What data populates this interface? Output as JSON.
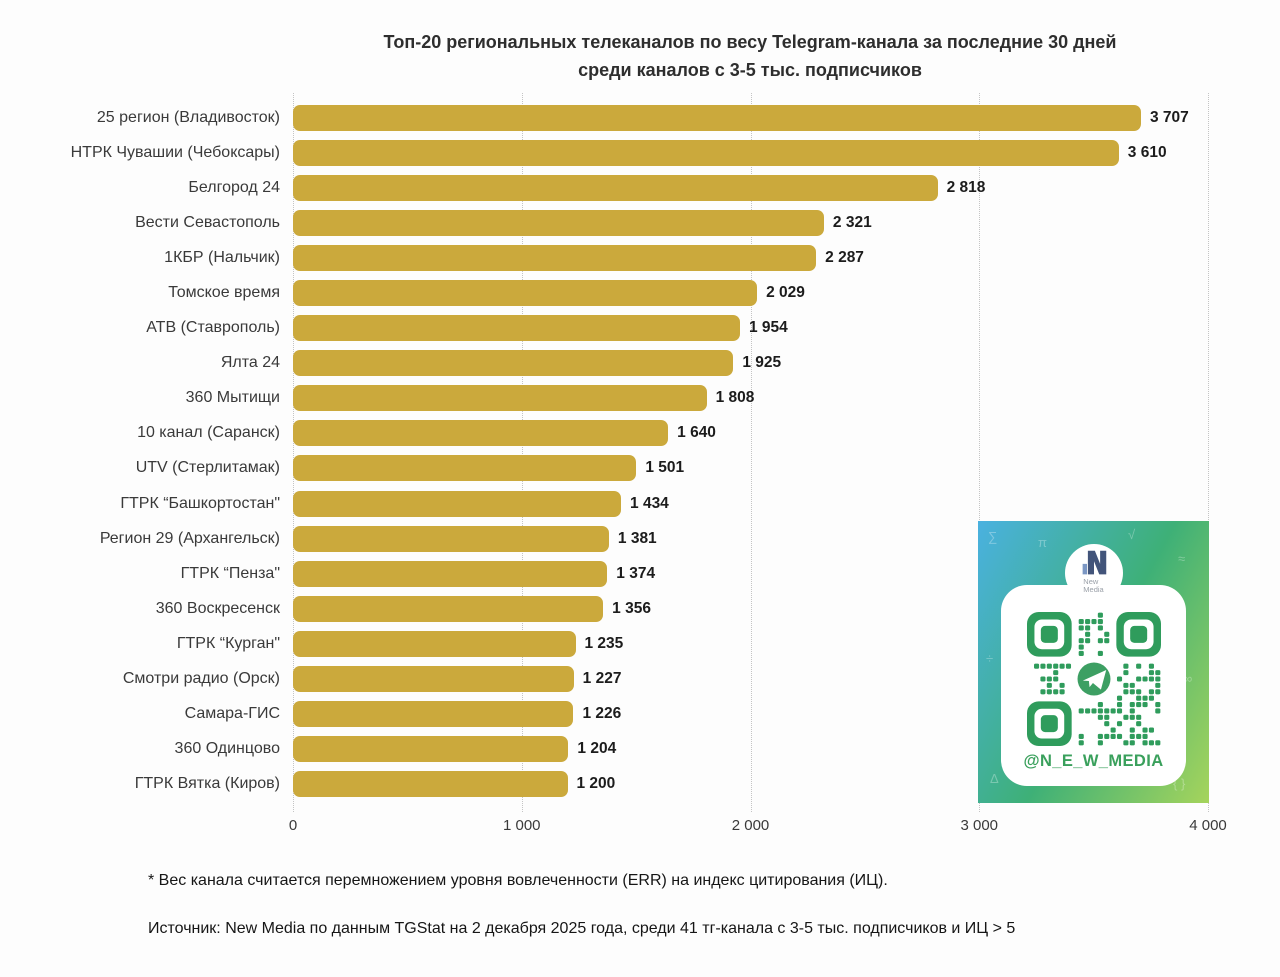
{
  "title": {
    "line1": "Топ-20 региональных телеканалов по весу Telegram-канала за последние 30 дней",
    "line2": "среди каналов с 3-5 тыс. подписчиков"
  },
  "chart_data": {
    "type": "bar",
    "orientation": "horizontal",
    "title": "Топ-20 региональных телеканалов по весу Telegram-канала за последние 30 дней среди каналов с 3-5 тыс. подписчиков",
    "categories": [
      "25 регион (Владивосток)",
      "НТРК Чувашии (Чебоксары)",
      "Белгород 24",
      "Вести Севастополь",
      "1КБР (Нальчик)",
      "Томское время",
      "АТВ (Ставрополь)",
      "Ялта 24",
      "360 Мытищи",
      "10 канал (Саранск)",
      "UTV (Стерлитамак)",
      "ГТРК “Башкортостан\"",
      "Регион 29 (Архангельск)",
      "ГТРК “Пенза\"",
      "360 Воскресенск",
      "ГТРК “Курган\"",
      "Смотри радио (Орск)",
      "Самара-ГИС",
      "360 Одинцово",
      "ГТРК Вятка (Киров)"
    ],
    "values": [
      3707,
      3610,
      2818,
      2321,
      2287,
      2029,
      1954,
      1925,
      1808,
      1640,
      1501,
      1434,
      1381,
      1374,
      1356,
      1235,
      1227,
      1226,
      1204,
      1200
    ],
    "value_labels": [
      "3 707",
      "3 610",
      "2 818",
      "2 321",
      "2 287",
      "2 029",
      "1 954",
      "1 925",
      "1 808",
      "1 640",
      "1 501",
      "1 434",
      "1 381",
      "1 374",
      "1 356",
      "1 235",
      "1 227",
      "1 226",
      "1 204",
      "1 200"
    ],
    "xlabel": "",
    "ylabel": "",
    "xlim": [
      0,
      4000
    ],
    "x_ticks": [
      0,
      1000,
      2000,
      3000,
      4000
    ],
    "x_tick_labels": [
      "0",
      "1 000",
      "2 000",
      "3 000",
      "4 000"
    ],
    "grid": "vertical-dotted",
    "legend": "none",
    "bar_color": "#CBA93C"
  },
  "footnotes": {
    "note1": "* Вес канала считается перемножением уровня вовлеченности (ERR) на индекс цитирования (ИЦ).",
    "source": "Источник: New Media по данным TGStat на 2 декабря 2025 года, среди 41 тг-канала с 3-5 тыс. подписчиков и ИЦ > 5"
  },
  "qr_panel": {
    "logo_line1": "New",
    "logo_line2": "Media",
    "handle": "@N_E_W_MEDIA",
    "qr_color": "#2f9c5c",
    "telegram_circle_color": "#3d9f63",
    "gradient_start": "#4ab1e0",
    "gradient_mid": "#3eb077",
    "gradient_end": "#a5d45c",
    "doodles": [
      "∑",
      "π",
      "√",
      "≈",
      "÷",
      "∞",
      "Δ",
      "{ }"
    ]
  }
}
